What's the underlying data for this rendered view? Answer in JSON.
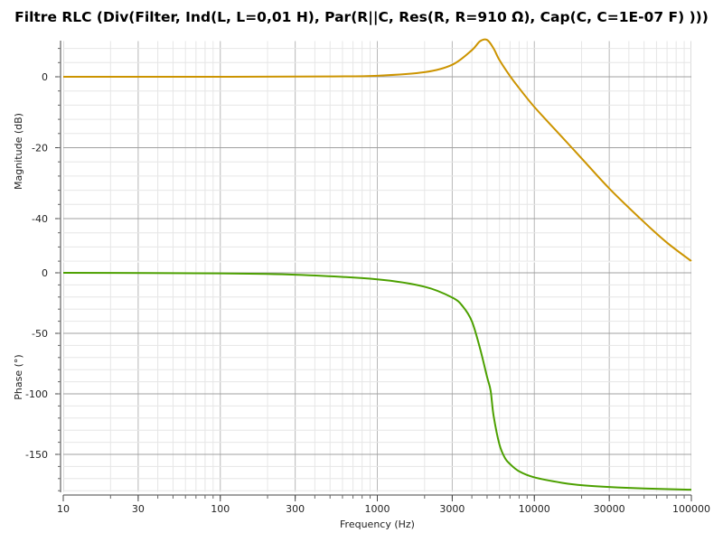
{
  "title": "Filtre RLC (Div(Filter, Ind(L, L=0,01 H), Par(R||C, Res(R, R=910 Ω), Cap(C, C=1E-07 F) )))",
  "chart_data": [
    {
      "type": "line",
      "ylabel": "Magnitude (dB)",
      "yticks": [
        0,
        -20,
        -40
      ],
      "ytick_labels": [
        "0",
        "-20",
        "-40"
      ],
      "ylim": [
        -52,
        10
      ],
      "grid": true,
      "x_scale": "log",
      "xlim": [
        10,
        100000
      ],
      "series": [
        {
          "color": "#cc9400",
          "x": [
            10,
            100,
            500,
            1000,
            2000,
            3000,
            4000,
            4500,
            5000,
            5500,
            6000,
            7000,
            8000,
            10000,
            15000,
            20000,
            30000,
            50000,
            70000,
            100000
          ],
          "y": [
            0,
            0,
            0.1,
            0.3,
            1.3,
            3.4,
            7.5,
            10.0,
            10.4,
            8.0,
            4.7,
            0.2,
            -3.2,
            -8.5,
            -17.0,
            -23.0,
            -31.5,
            -41.0,
            -46.8,
            -52.0
          ]
        }
      ]
    },
    {
      "type": "line",
      "ylabel": "Phase (°)",
      "xlabel": "Frequency (Hz)",
      "yticks": [
        0,
        -50,
        -100,
        -150
      ],
      "ytick_labels": [
        "0",
        "-50",
        "-100",
        "-150"
      ],
      "ylim": [
        -180,
        0
      ],
      "xticks": [
        10,
        30,
        100,
        300,
        1000,
        3000,
        10000,
        30000,
        100000
      ],
      "xtick_labels": [
        "10",
        "30",
        "100",
        "300",
        "1000",
        "3000",
        "10000",
        "30000",
        "100000"
      ],
      "x_scale": "log",
      "xlim": [
        10,
        100000
      ],
      "grid": true,
      "series": [
        {
          "color": "#4ca000",
          "x": [
            10,
            100,
            300,
            1000,
            2000,
            3000,
            3500,
            4000,
            4500,
            5000,
            5270,
            5500,
            6000,
            6500,
            7000,
            8000,
            10000,
            15000,
            20000,
            30000,
            50000,
            100000
          ],
          "y": [
            0,
            -0.5,
            -1.6,
            -5.4,
            -11.5,
            -20.4,
            -27.7,
            -40.0,
            -62.0,
            -86.0,
            -97.5,
            -118.0,
            -142.0,
            -153.0,
            -158.0,
            -164.0,
            -169.0,
            -173.5,
            -175.5,
            -177.0,
            -178.2,
            -179.2
          ]
        }
      ]
    }
  ]
}
